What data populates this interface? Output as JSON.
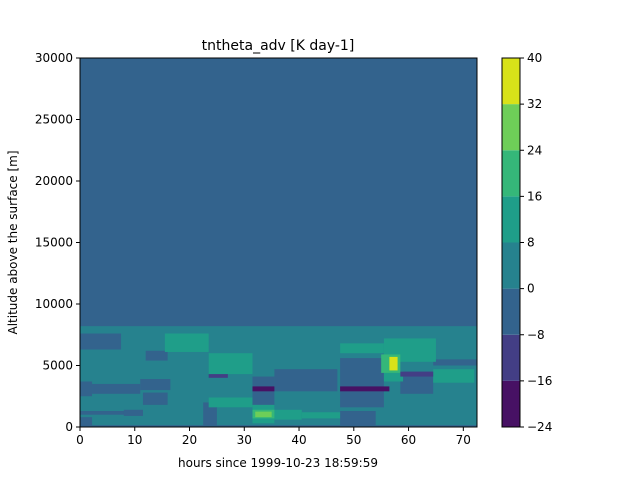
{
  "chart_data": {
    "type": "heatmap",
    "title": "tntheta_adv [K day-1]",
    "xlabel": "hours since 1999-10-23 18:59:59",
    "ylabel": "Altitude above the surface [m]",
    "xlim": [
      0,
      72.5
    ],
    "ylim": [
      0,
      30000
    ],
    "x_ticks": [
      0,
      10,
      20,
      30,
      40,
      50,
      60,
      70
    ],
    "y_ticks": [
      0,
      5000,
      10000,
      15000,
      20000,
      25000,
      30000
    ],
    "colorbar": {
      "levels": [
        -24,
        -16,
        -8,
        0,
        8,
        16,
        24,
        32,
        40
      ],
      "colors": [
        "#471164",
        "#433e85",
        "#33638d",
        "#26828e",
        "#1f9e89",
        "#35b779",
        "#6ece58",
        "#d8e219"
      ],
      "tick_labels": [
        "−24",
        "−16",
        "−8",
        "0",
        "8",
        "16",
        "24",
        "32",
        "40"
      ]
    },
    "background_level": 2,
    "regions": [
      {
        "x": [
          0,
          72.5
        ],
        "y": [
          0,
          8200
        ],
        "level": 3
      },
      {
        "x": [
          0,
          7.5
        ],
        "y": [
          6300,
          7600
        ],
        "level": 2
      },
      {
        "x": [
          0,
          2.2
        ],
        "y": [
          2500,
          3700
        ],
        "level": 2
      },
      {
        "x": [
          2.2,
          11
        ],
        "y": [
          2700,
          3500
        ],
        "level": 2
      },
      {
        "x": [
          0,
          2.2
        ],
        "y": [
          0,
          800
        ],
        "level": 2
      },
      {
        "x": [
          0,
          11
        ],
        "y": [
          1000,
          1300
        ],
        "level": 2
      },
      {
        "x": [
          11,
          16.5
        ],
        "y": [
          3000,
          3900
        ],
        "level": 2
      },
      {
        "x": [
          8,
          11.5
        ],
        "y": [
          900,
          1400
        ],
        "level": 2
      },
      {
        "x": [
          12,
          16
        ],
        "y": [
          5400,
          6200
        ],
        "level": 2
      },
      {
        "x": [
          11.5,
          16
        ],
        "y": [
          1800,
          2800
        ],
        "level": 2
      },
      {
        "x": [
          22.5,
          25
        ],
        "y": [
          0,
          2000
        ],
        "level": 2
      },
      {
        "x": [
          31.5,
          35.5
        ],
        "y": [
          1600,
          4100
        ],
        "level": 2
      },
      {
        "x": [
          35.5,
          47
        ],
        "y": [
          2900,
          4700
        ],
        "level": 2
      },
      {
        "x": [
          47.5,
          55.5
        ],
        "y": [
          1600,
          5600
        ],
        "level": 2
      },
      {
        "x": [
          47.5,
          54
        ],
        "y": [
          0,
          1300
        ],
        "level": 2
      },
      {
        "x": [
          58.5,
          64.5
        ],
        "y": [
          2700,
          4500
        ],
        "level": 2
      },
      {
        "x": [
          64.5,
          72.5
        ],
        "y": [
          5000,
          5500
        ],
        "level": 2
      },
      {
        "x": [
          0,
          72.5
        ],
        "y": [
          0,
          150
        ],
        "level": 2
      },
      {
        "x": [
          15.5,
          23.5
        ],
        "y": [
          6100,
          7600
        ],
        "level": 4
      },
      {
        "x": [
          23.5,
          31.5
        ],
        "y": [
          4300,
          6000
        ],
        "level": 4
      },
      {
        "x": [
          23.5,
          31.5
        ],
        "y": [
          1600,
          2400
        ],
        "level": 4
      },
      {
        "x": [
          47.5,
          55.5
        ],
        "y": [
          6000,
          6800
        ],
        "level": 4
      },
      {
        "x": [
          35,
          40.5
        ],
        "y": [
          600,
          1400
        ],
        "level": 4
      },
      {
        "x": [
          40.5,
          47.5
        ],
        "y": [
          700,
          1200
        ],
        "level": 4
      },
      {
        "x": [
          64.5,
          72
        ],
        "y": [
          3600,
          4700
        ],
        "level": 4
      },
      {
        "x": [
          55.5,
          65
        ],
        "y": [
          5300,
          7200
        ],
        "level": 4
      },
      {
        "x": [
          31.5,
          35.5
        ],
        "y": [
          300,
          1800
        ],
        "level": 4
      },
      {
        "x": [
          55.5,
          59
        ],
        "y": [
          3700,
          4500
        ],
        "level": 4
      },
      {
        "x": [
          55,
          58.5
        ],
        "y": [
          4400,
          5900
        ],
        "level": 5
      },
      {
        "x": [
          56.5,
          58
        ],
        "y": [
          4600,
          5700
        ],
        "level": 7
      },
      {
        "x": [
          31.5,
          35.5
        ],
        "y": [
          700,
          1400
        ],
        "level": 5
      },
      {
        "x": [
          32,
          35
        ],
        "y": [
          800,
          1250
        ],
        "level": 6
      },
      {
        "x": [
          47.5,
          56.5
        ],
        "y": [
          2900,
          3300
        ],
        "level": 0
      },
      {
        "x": [
          31.5,
          35.5
        ],
        "y": [
          2900,
          3300
        ],
        "level": 0
      },
      {
        "x": [
          58.5,
          64.5
        ],
        "y": [
          4100,
          4500
        ],
        "level": 1
      },
      {
        "x": [
          23.5,
          27
        ],
        "y": [
          4000,
          4300
        ],
        "level": 1
      }
    ]
  }
}
